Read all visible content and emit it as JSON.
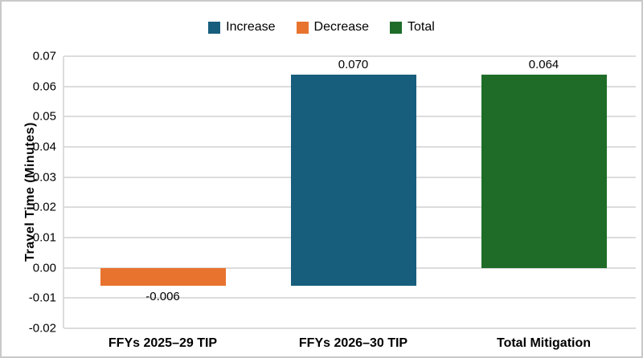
{
  "chart_data": {
    "type": "bar",
    "subtype": "waterfall",
    "title": "",
    "ylabel": "Travel Time (Minutes)",
    "xlabel": "",
    "ylim": [
      -0.02,
      0.07
    ],
    "yticks": [
      0.07,
      0.06,
      0.05,
      0.04,
      0.03,
      0.02,
      0.01,
      0.0,
      -0.01,
      -0.02
    ],
    "grid": true,
    "legend_position": "top-center",
    "categories": [
      "FFYs 2025–29 TIP",
      "FFYs 2026–30 TIP",
      "Total Mitigation"
    ],
    "bars": [
      {
        "category": "FFYs 2025–29 TIP",
        "series": "Decrease",
        "value": -0.006,
        "label": "-0.006",
        "start": 0,
        "end": -0.006,
        "color": "#E8732E"
      },
      {
        "category": "FFYs 2026–30 TIP",
        "series": "Increase",
        "value": 0.07,
        "label": "0.070",
        "start": -0.006,
        "end": 0.064,
        "color": "#175E7D"
      },
      {
        "category": "Total Mitigation",
        "series": "Total",
        "value": 0.064,
        "label": "0.064",
        "start": 0,
        "end": 0.064,
        "color": "#1E6C28"
      }
    ],
    "legend": [
      {
        "label": "Increase",
        "color": "#175E7D"
      },
      {
        "label": "Decrease",
        "color": "#E8732E"
      },
      {
        "label": "Total",
        "color": "#1E6C28"
      }
    ],
    "colors": {
      "gridline": "#dcdcdc",
      "border": "#c9c9c9",
      "text": "#000000",
      "background": "#ffffff"
    }
  }
}
